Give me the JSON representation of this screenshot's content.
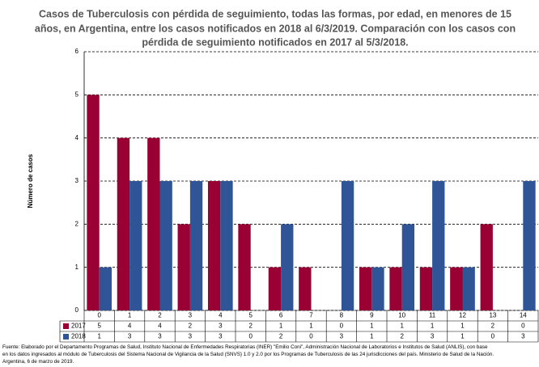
{
  "chart_data": {
    "type": "bar",
    "title": [
      "Casos de Tuberculosis con pérdida de seguimiento, todas las formas, por edad, en menores de 15",
      "años, en Argentina, entre los casos notificados en 2018 al 6/3/2019. Comparación con los casos con",
      "pérdida de seguimiento notificados en 2017 al 5/3/2018."
    ],
    "y_label": "Número de casos",
    "categories": [
      "0",
      "1",
      "2",
      "3",
      "4",
      "5",
      "6",
      "7",
      "8",
      "9",
      "10",
      "11",
      "12",
      "13",
      "14"
    ],
    "series": [
      {
        "name": "2017",
        "color": "#990033",
        "values": [
          5,
          4,
          4,
          2,
          3,
          2,
          1,
          1,
          0,
          1,
          1,
          1,
          1,
          2,
          0
        ]
      },
      {
        "name": "2018",
        "color": "#2f5597",
        "values": [
          1,
          3,
          3,
          3,
          3,
          0,
          2,
          0,
          3,
          1,
          2,
          3,
          1,
          0,
          3
        ]
      }
    ],
    "ylim": [
      0,
      6
    ],
    "yticks": [
      0,
      1,
      2,
      3,
      4,
      5,
      6
    ],
    "grid": true,
    "source": [
      "Fuente: Elaborado por el Departamento Programas de Salud, Instituto Nacional de Enfermedades Respiratorias (INER) \"Emilio Coni\", Administración Nacional de Laboratorios e Institutos de Salud (ANLIS), con base",
      "en los datos ingresados al módulo de Tuberculosis del Sistema Nacional de Vigilancia de la Salud (SNVS) 1.0 y 2.0 por los Programas de Tuberculosis de las 24 jurisdicciones del país. Ministerio de Salud de la Nación.",
      "Argentina,  6 de marzo de 2019."
    ]
  }
}
